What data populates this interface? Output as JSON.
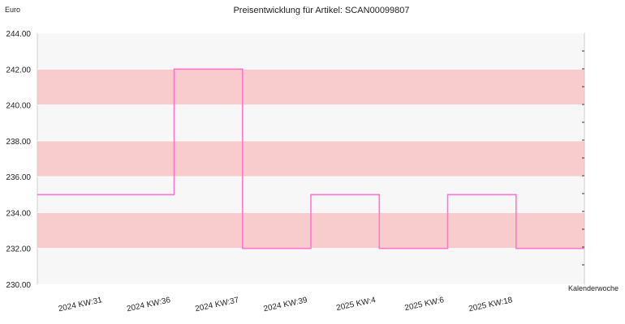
{
  "chart_data": {
    "type": "line",
    "step": true,
    "title": "Preisentwicklung für Artikel: SCAN00099807",
    "ylabel": "Euro",
    "xlabel": "Kalenderwoche",
    "ylim": [
      230,
      244
    ],
    "y_ticks": [
      "230.00",
      "232.00",
      "234.00",
      "236.00",
      "238.00",
      "240.00",
      "242.00",
      "244.00"
    ],
    "x_ticks": [
      "2024 KW:31",
      "2024 KW:36",
      "2024 KW:37",
      "2024 KW:39",
      "2025 KW:4",
      "2025 KW:6",
      "2025 KW:18"
    ],
    "series": [
      {
        "values": [
          235.0,
          235.0,
          242.0,
          232.0,
          235.0,
          232.0,
          235.0,
          232.0
        ]
      }
    ],
    "grid": true,
    "band_colors": [
      "#f7f7f7",
      "#f8cccc"
    ],
    "line_color": "#ff77cc"
  }
}
